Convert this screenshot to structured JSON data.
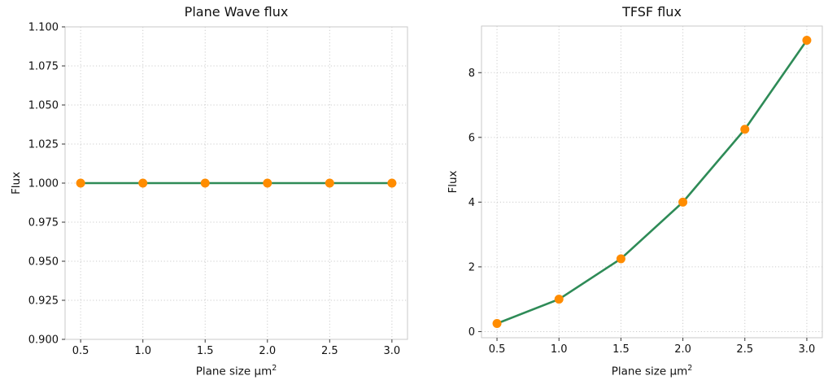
{
  "figure": {
    "background": "#ffffff"
  },
  "style": {
    "line_color": "#2e8b57",
    "marker_color": "#ff8c00",
    "grid_color": "#cccccc",
    "spine_color": "#c9c9c9",
    "tick_color": "#333333",
    "text_color": "#111111"
  },
  "chart_data": [
    {
      "type": "line",
      "title": "Plane Wave flux",
      "xlabel": "Plane size μm²",
      "xlabel_base": "Plane size μm",
      "xlabel_sup": "2",
      "ylabel": "Flux",
      "x": [
        0.5,
        1.0,
        1.5,
        2.0,
        2.5,
        3.0
      ],
      "y": [
        1.0,
        1.0,
        1.0,
        1.0,
        1.0,
        1.0
      ],
      "xlim": [
        0.375,
        3.125
      ],
      "ylim": [
        0.9,
        1.1
      ],
      "xticks": [
        0.5,
        1.0,
        1.5,
        2.0,
        2.5,
        3.0
      ],
      "xtick_labels": [
        "0.5",
        "1.0",
        "1.5",
        "2.0",
        "2.5",
        "3.0"
      ],
      "yticks": [
        0.9,
        0.925,
        0.95,
        0.975,
        1.0,
        1.025,
        1.05,
        1.075,
        1.1
      ],
      "ytick_labels": [
        "0.900",
        "0.925",
        "0.950",
        "0.975",
        "1.000",
        "1.025",
        "1.050",
        "1.075",
        "1.100"
      ],
      "grid": true,
      "grid_linestyle": "dotted",
      "legend": "none",
      "marker": "circle"
    },
    {
      "type": "line",
      "title": "TFSF flux",
      "xlabel": "Plane size μm²",
      "xlabel_base": "Plane size μm",
      "xlabel_sup": "2",
      "ylabel": "Flux",
      "x": [
        0.5,
        1.0,
        1.5,
        2.0,
        2.5,
        3.0
      ],
      "y": [
        0.25,
        1.0,
        2.25,
        4.0,
        6.25,
        9.0
      ],
      "xlim": [
        0.375,
        3.125
      ],
      "ylim": [
        -0.19,
        9.44
      ],
      "xticks": [
        0.5,
        1.0,
        1.5,
        2.0,
        2.5,
        3.0
      ],
      "xtick_labels": [
        "0.5",
        "1.0",
        "1.5",
        "2.0",
        "2.5",
        "3.0"
      ],
      "yticks": [
        0,
        2,
        4,
        6,
        8
      ],
      "ytick_labels": [
        "0",
        "2",
        "4",
        "6",
        "8"
      ],
      "grid": true,
      "grid_linestyle": "dotted",
      "legend": "none",
      "marker": "circle"
    }
  ]
}
